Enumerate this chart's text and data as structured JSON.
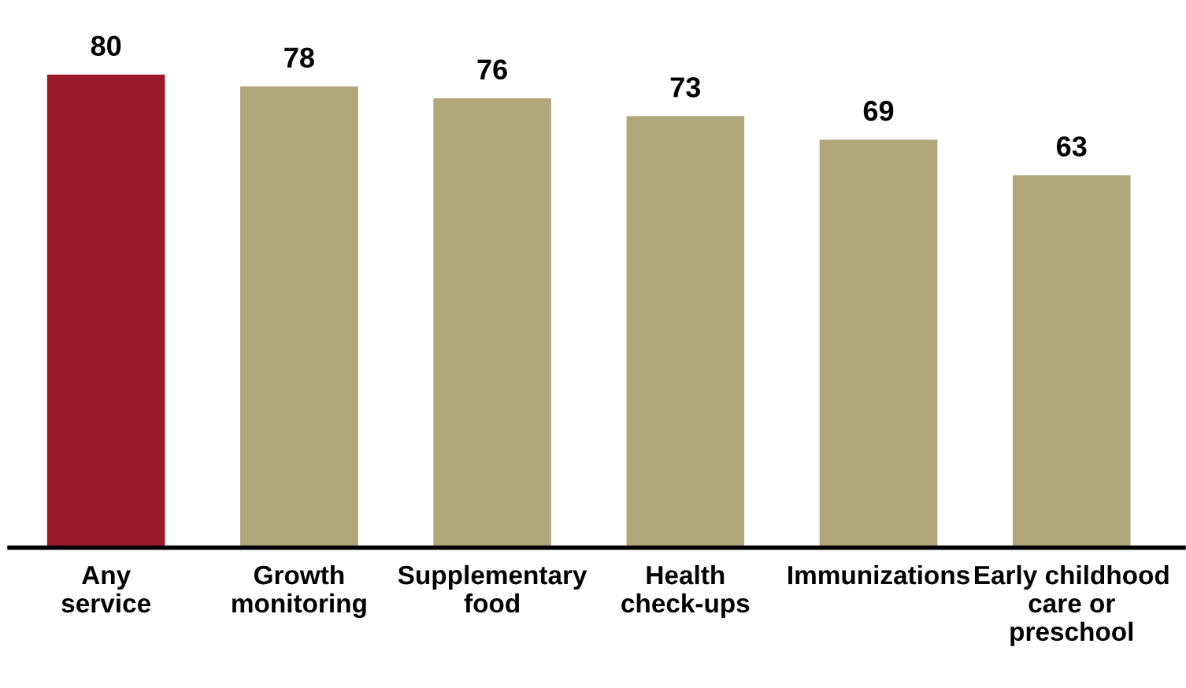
{
  "chart_data": {
    "type": "bar",
    "categories": [
      "Any\nservice",
      "Growth\nmonitoring",
      "Supplementary\nfood",
      "Health\ncheck-ups",
      "Immunizations",
      "Early childhood\ncare or\npreschool"
    ],
    "values": [
      80,
      78,
      76,
      73,
      69,
      63
    ],
    "colors": [
      "#9b1b2a",
      "#b1a57a",
      "#b1a57a",
      "#b1a57a",
      "#b1a57a",
      "#b1a57a"
    ],
    "data_labels": true,
    "grid": false,
    "legend": false
  }
}
